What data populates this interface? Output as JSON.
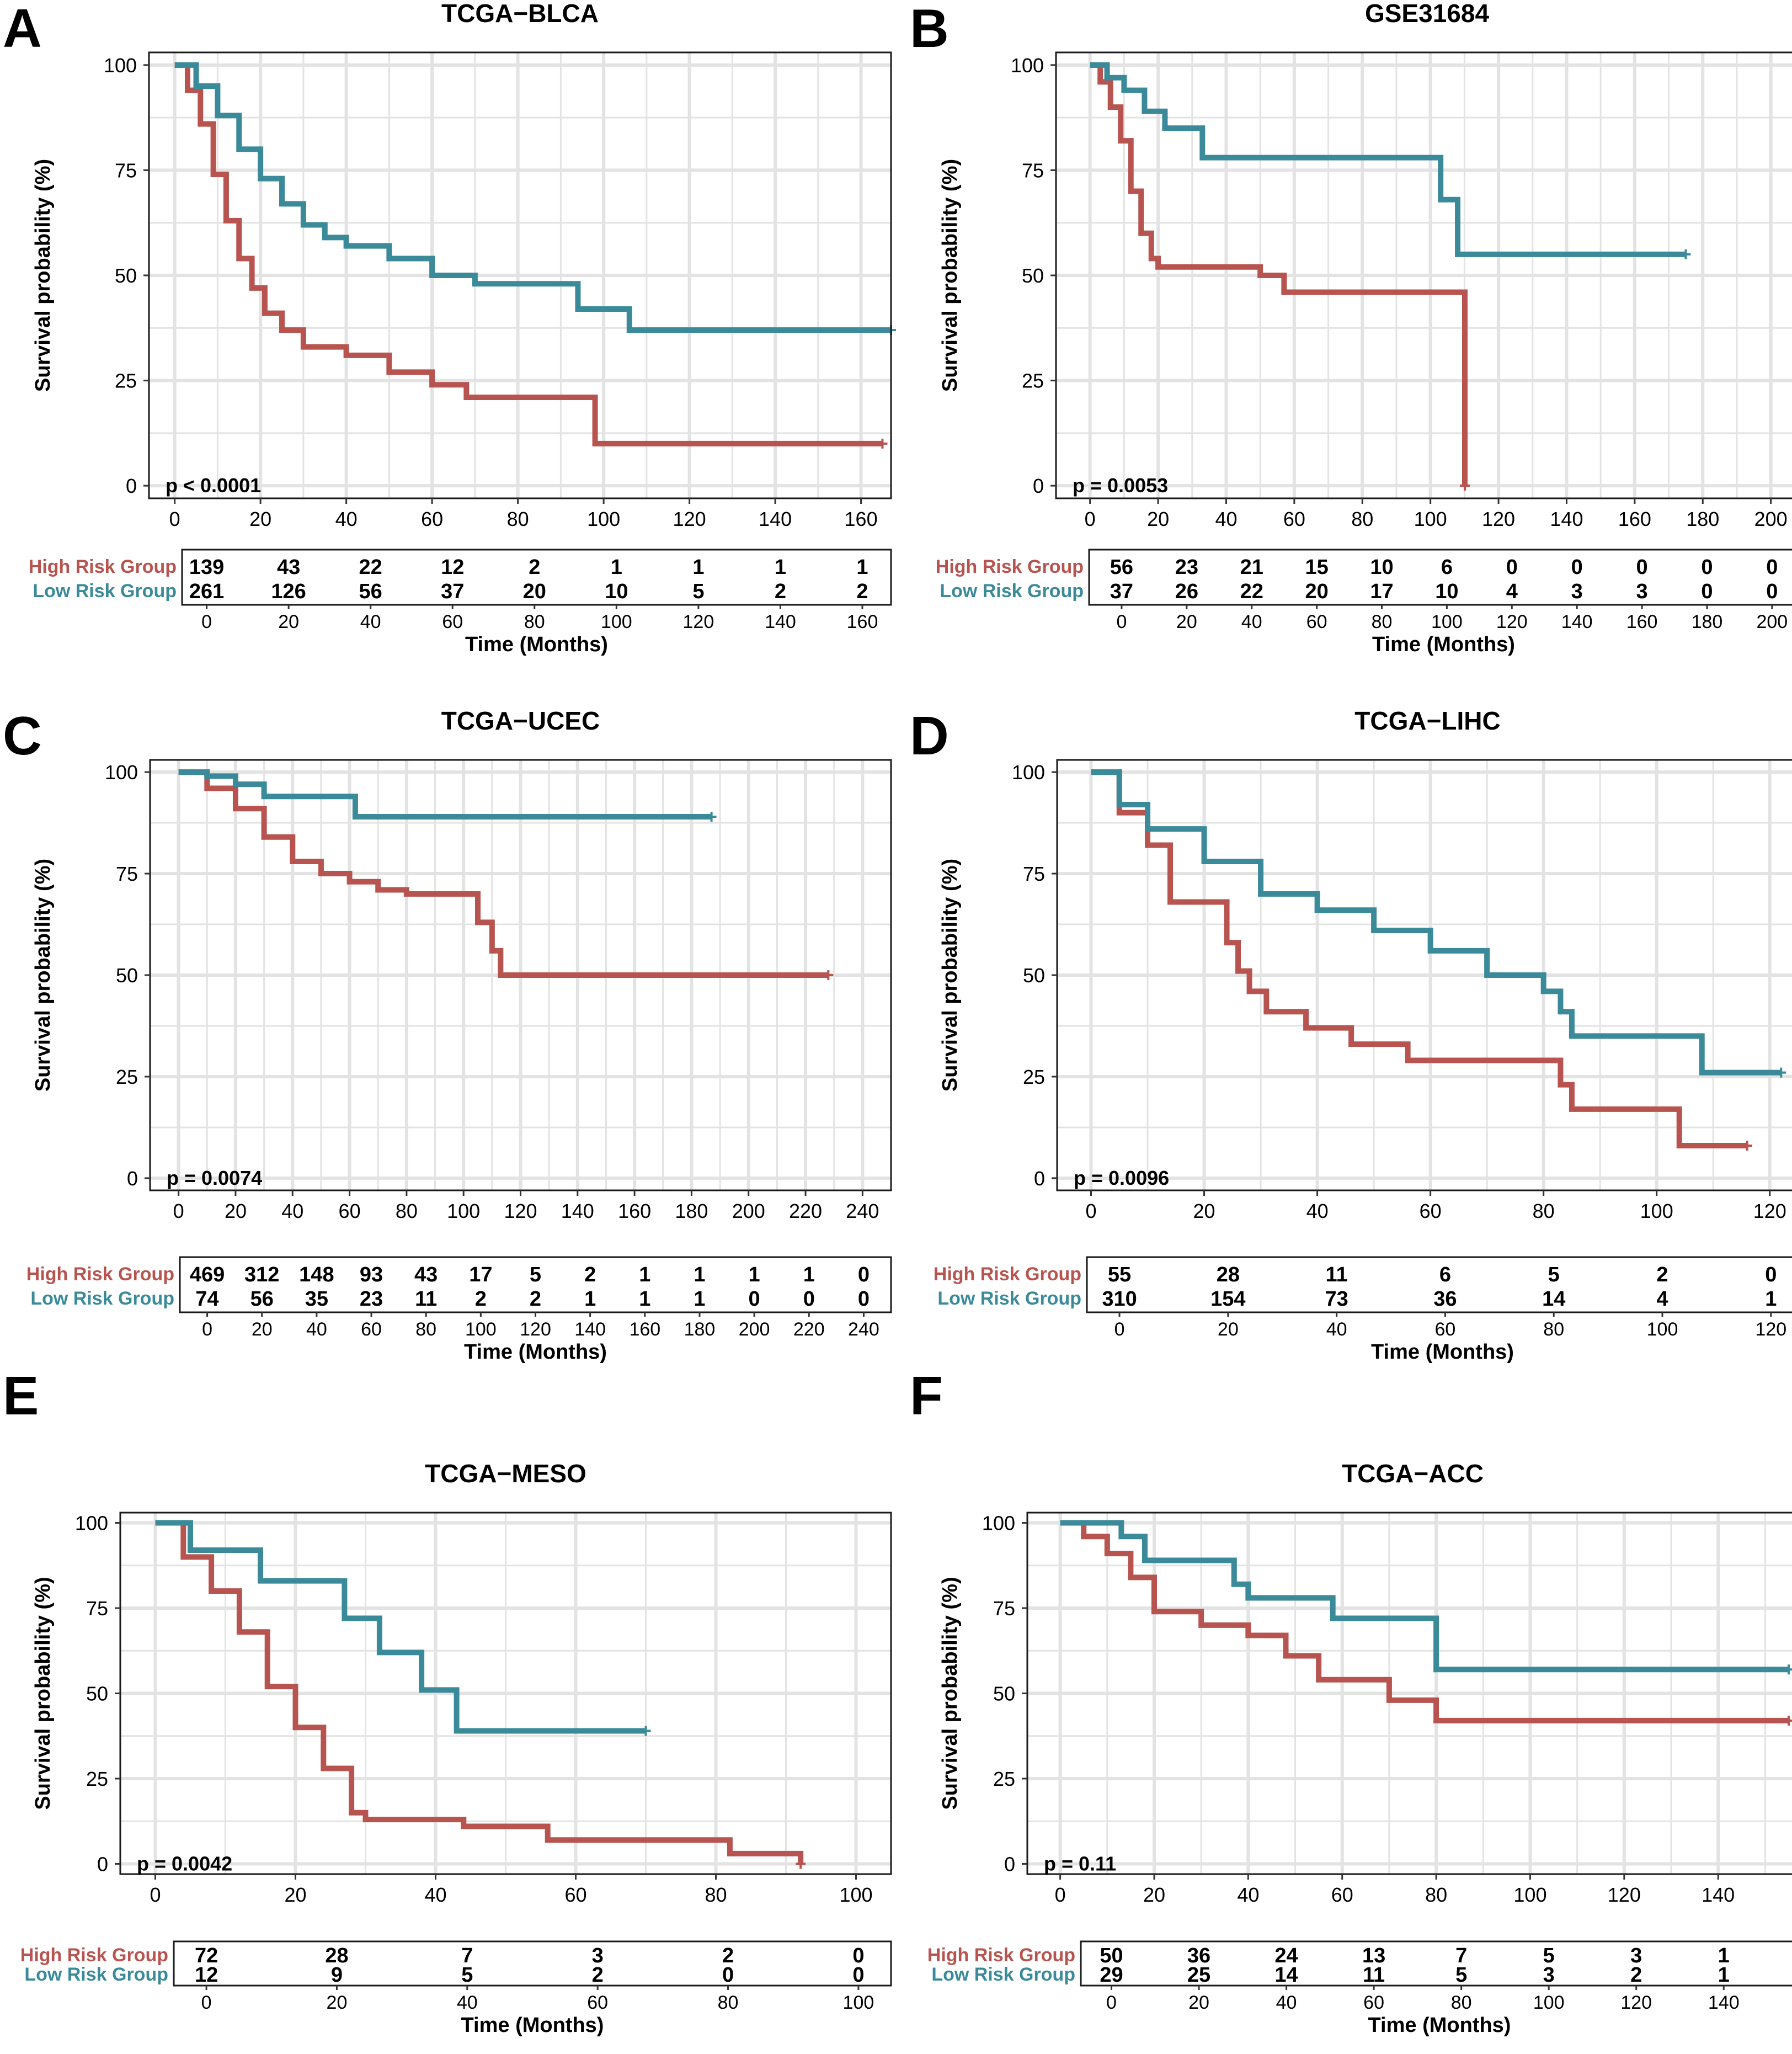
{
  "colors": {
    "high": "#b85450",
    "low": "#3a8a9a",
    "grid": "#e3e3e3",
    "frame": "#1a1a1a"
  },
  "chart_data": [
    {
      "type": "line",
      "panel_label": "A",
      "title": "TCGA−BLCA",
      "ylabel": "Survival probability (%)",
      "xlabel": "Time (Months)",
      "xlim": [
        -6,
        167
      ],
      "ylim": [
        -3,
        103
      ],
      "x_ticks": [
        0,
        20,
        40,
        60,
        80,
        100,
        120,
        140,
        160
      ],
      "y_ticks": [
        0,
        25,
        50,
        75,
        100
      ],
      "pvalue": "p < 0.0001",
      "series": [
        {
          "name": "High Risk Group",
          "color_key": "high",
          "x": [
            0,
            3,
            6,
            9,
            12,
            15,
            18,
            21,
            25,
            30,
            40,
            50,
            60,
            68,
            75,
            85,
            98,
            165
          ],
          "y": [
            100,
            94,
            86,
            74,
            63,
            54,
            47,
            41,
            37,
            33,
            31,
            27,
            24,
            21,
            21,
            21,
            10,
            10
          ]
        },
        {
          "name": "Low Risk Group",
          "color_key": "low",
          "x": [
            0,
            5,
            10,
            15,
            20,
            25,
            30,
            35,
            40,
            50,
            60,
            70,
            80,
            94,
            106,
            167
          ],
          "y": [
            100,
            95,
            88,
            80,
            73,
            67,
            62,
            59,
            57,
            54,
            50,
            48,
            48,
            42,
            37,
            37
          ]
        }
      ],
      "risk_table": {
        "times": [
          0,
          20,
          40,
          60,
          80,
          100,
          120,
          140,
          160
        ],
        "xlim": [
          -6,
          167
        ],
        "rows": [
          {
            "label": "High Risk Group",
            "color_key": "high",
            "values": [
              "139",
              "43",
              "22",
              "12",
              "2",
              "1",
              "1",
              "1",
              "1"
            ]
          },
          {
            "label": "Low Risk Group",
            "color_key": "low",
            "values": [
              "261",
              "126",
              "56",
              "37",
              "20",
              "10",
              "5",
              "2",
              "2"
            ]
          }
        ]
      }
    },
    {
      "type": "line",
      "panel_label": "B",
      "title": "GSE31684",
      "ylabel": "Survival probability (%)",
      "xlabel": "Time (Months)",
      "xlim": [
        -10,
        208
      ],
      "ylim": [
        -3,
        103
      ],
      "x_ticks": [
        0,
        20,
        40,
        60,
        80,
        100,
        120,
        140,
        160,
        180,
        200
      ],
      "y_ticks": [
        0,
        25,
        50,
        75,
        100
      ],
      "pvalue": "p = 0.0053",
      "series": [
        {
          "name": "High Risk Group",
          "color_key": "high",
          "x": [
            0,
            3,
            6,
            9,
            12,
            15,
            18,
            20,
            40,
            50,
            57,
            80,
            110,
            110.1
          ],
          "y": [
            100,
            96,
            90,
            82,
            70,
            60,
            54,
            52,
            52,
            50,
            46,
            46,
            46,
            0
          ]
        },
        {
          "name": "Low Risk Group",
          "color_key": "low",
          "x": [
            0,
            5,
            10,
            16,
            22,
            33,
            60,
            100,
            103,
            108,
            175
          ],
          "y": [
            100,
            97,
            94,
            89,
            85,
            78,
            78,
            78,
            68,
            55,
            55
          ]
        }
      ],
      "risk_table": {
        "times": [
          0,
          20,
          40,
          60,
          80,
          100,
          120,
          140,
          160,
          180,
          200
        ],
        "xlim": [
          -10,
          208
        ],
        "rows": [
          {
            "label": "High Risk Group",
            "color_key": "high",
            "values": [
              "56",
              "23",
              "21",
              "15",
              "10",
              "6",
              "0",
              "0",
              "0",
              "0",
              "0"
            ]
          },
          {
            "label": "Low Risk Group",
            "color_key": "low",
            "values": [
              "37",
              "26",
              "22",
              "20",
              "17",
              "10",
              "4",
              "3",
              "3",
              "0",
              "0"
            ]
          }
        ]
      }
    },
    {
      "type": "line",
      "panel_label": "C",
      "title": "TCGA−UCEC",
      "ylabel": "Survival probability (%)",
      "xlabel": "Time (Months)",
      "xlim": [
        -10,
        250
      ],
      "ylim": [
        -3,
        103
      ],
      "x_ticks": [
        0,
        20,
        40,
        60,
        80,
        100,
        120,
        140,
        160,
        180,
        200,
        220,
        240
      ],
      "y_ticks": [
        0,
        25,
        50,
        75,
        100
      ],
      "pvalue": "p = 0.0074",
      "series": [
        {
          "name": "High Risk Group",
          "color_key": "high",
          "x": [
            0,
            10,
            20,
            30,
            40,
            50,
            60,
            70,
            80,
            100,
            105,
            110,
            113,
            160,
            228
          ],
          "y": [
            100,
            96,
            91,
            84,
            78,
            75,
            73,
            71,
            70,
            70,
            63,
            56,
            50,
            50,
            50
          ]
        },
        {
          "name": "Low Risk Group",
          "color_key": "low",
          "x": [
            0,
            10,
            20,
            30,
            40,
            62,
            80,
            120,
            187
          ],
          "y": [
            100,
            99,
            97,
            94,
            94,
            89,
            89,
            89,
            89
          ]
        }
      ],
      "risk_table": {
        "times": [
          0,
          20,
          40,
          60,
          80,
          100,
          120,
          140,
          160,
          180,
          200,
          220,
          240
        ],
        "xlim": [
          -10,
          250
        ],
        "rows": [
          {
            "label": "High Risk Group",
            "color_key": "high",
            "values": [
              "469",
              "312",
              "148",
              "93",
              "43",
              "17",
              "5",
              "2",
              "1",
              "1",
              "1",
              "1",
              "0"
            ]
          },
          {
            "label": "Low Risk Group",
            "color_key": "low",
            "values": [
              "74",
              "56",
              "35",
              "23",
              "11",
              "2",
              "2",
              "1",
              "1",
              "1",
              "0",
              "0",
              "0"
            ]
          }
        ]
      }
    },
    {
      "type": "line",
      "panel_label": "D",
      "title": "TCGA−LIHC",
      "ylabel": "Survival probability (%)",
      "xlabel": "Time (Months)",
      "xlim": [
        -6,
        125
      ],
      "ylim": [
        -3,
        103
      ],
      "x_ticks": [
        0,
        20,
        40,
        60,
        80,
        100,
        120
      ],
      "y_ticks": [
        0,
        25,
        50,
        75,
        100
      ],
      "pvalue": "p = 0.0096",
      "series": [
        {
          "name": "High Risk Group",
          "color_key": "high",
          "x": [
            0,
            5,
            10,
            14,
            20,
            24,
            26,
            28,
            31,
            38,
            46,
            56,
            70,
            83,
            85,
            104,
            116
          ],
          "y": [
            100,
            90,
            82,
            68,
            68,
            58,
            51,
            46,
            41,
            37,
            33,
            29,
            29,
            23,
            17,
            8,
            8
          ]
        },
        {
          "name": "Low Risk Group",
          "color_key": "low",
          "x": [
            0,
            5,
            10,
            20,
            30,
            40,
            50,
            60,
            70,
            80,
            83,
            85,
            108,
            122
          ],
          "y": [
            100,
            92,
            86,
            78,
            70,
            66,
            61,
            56,
            50,
            46,
            41,
            35,
            26,
            26
          ]
        }
      ],
      "risk_table": {
        "times": [
          0,
          20,
          40,
          60,
          80,
          100,
          120
        ],
        "xlim": [
          -6,
          125
        ],
        "rows": [
          {
            "label": "High Risk Group",
            "color_key": "high",
            "values": [
              "55",
              "28",
              "11",
              "6",
              "5",
              "2",
              "0"
            ]
          },
          {
            "label": "Low Risk Group",
            "color_key": "low",
            "values": [
              "310",
              "154",
              "73",
              "36",
              "14",
              "4",
              "1"
            ]
          }
        ]
      }
    },
    {
      "type": "line",
      "panel_label": "E",
      "title": "TCGA−MESO",
      "ylabel": "Survival probability (%)",
      "xlabel": "Time (Months)",
      "xlim": [
        -5,
        105
      ],
      "ylim": [
        -3,
        103
      ],
      "x_ticks": [
        0,
        20,
        40,
        60,
        80,
        100
      ],
      "y_ticks": [
        0,
        25,
        50,
        75,
        100
      ],
      "pvalue": "p = 0.0042",
      "series": [
        {
          "name": "High Risk Group",
          "color_key": "high",
          "x": [
            0,
            4,
            8,
            12,
            16,
            20,
            24,
            28,
            30,
            34,
            44,
            56,
            70,
            82,
            92,
            92.1
          ],
          "y": [
            100,
            90,
            80,
            68,
            52,
            40,
            28,
            15,
            13,
            13,
            11,
            7,
            7,
            3,
            3,
            0
          ]
        },
        {
          "name": "Low Risk Group",
          "color_key": "low",
          "x": [
            0,
            5,
            15,
            27,
            32,
            38,
            43,
            70
          ],
          "y": [
            100,
            92,
            83,
            72,
            62,
            51,
            39,
            39
          ]
        }
      ],
      "risk_table": {
        "times": [
          0,
          20,
          40,
          60,
          80,
          100
        ],
        "xlim": [
          -5,
          105
        ],
        "rows": [
          {
            "label": "High Risk Group",
            "color_key": "high",
            "values": [
              "72",
              "28",
              "7",
              "3",
              "2",
              "0"
            ]
          },
          {
            "label": "Low Risk Group",
            "color_key": "low",
            "values": [
              "12",
              "9",
              "5",
              "2",
              "0",
              "0"
            ]
          }
        ]
      }
    },
    {
      "type": "line",
      "panel_label": "F",
      "title": "TCGA−ACC",
      "ylabel": "Survival probability (%)",
      "xlabel": "Time (Months)",
      "xlim": [
        -7,
        157
      ],
      "ylim": [
        -3,
        103
      ],
      "x_ticks": [
        0,
        20,
        40,
        60,
        80,
        100,
        120,
        140
      ],
      "y_ticks": [
        0,
        25,
        50,
        75,
        100
      ],
      "pvalue": "p = 0.11",
      "series": [
        {
          "name": "High Risk Group",
          "color_key": "high",
          "x": [
            0,
            5,
            10,
            15,
            20,
            30,
            40,
            48,
            55,
            70,
            80,
            155
          ],
          "y": [
            100,
            96,
            91,
            84,
            74,
            70,
            67,
            61,
            54,
            48,
            42,
            42
          ]
        },
        {
          "name": "Low Risk Group",
          "color_key": "low",
          "x": [
            0,
            13,
            18,
            37,
            40,
            58,
            80,
            155
          ],
          "y": [
            100,
            96,
            89,
            82,
            78,
            72,
            57,
            57
          ]
        }
      ],
      "risk_table": {
        "times": [
          0,
          20,
          40,
          60,
          80,
          100,
          120,
          140
        ],
        "xlim": [
          -7,
          157
        ],
        "rows": [
          {
            "label": "High Risk Group",
            "color_key": "high",
            "values": [
              "50",
              "36",
              "24",
              "13",
              "7",
              "5",
              "3",
              "1"
            ]
          },
          {
            "label": "Low Risk Group",
            "color_key": "low",
            "values": [
              "29",
              "25",
              "14",
              "11",
              "5",
              "3",
              "2",
              "1"
            ]
          }
        ]
      }
    }
  ]
}
